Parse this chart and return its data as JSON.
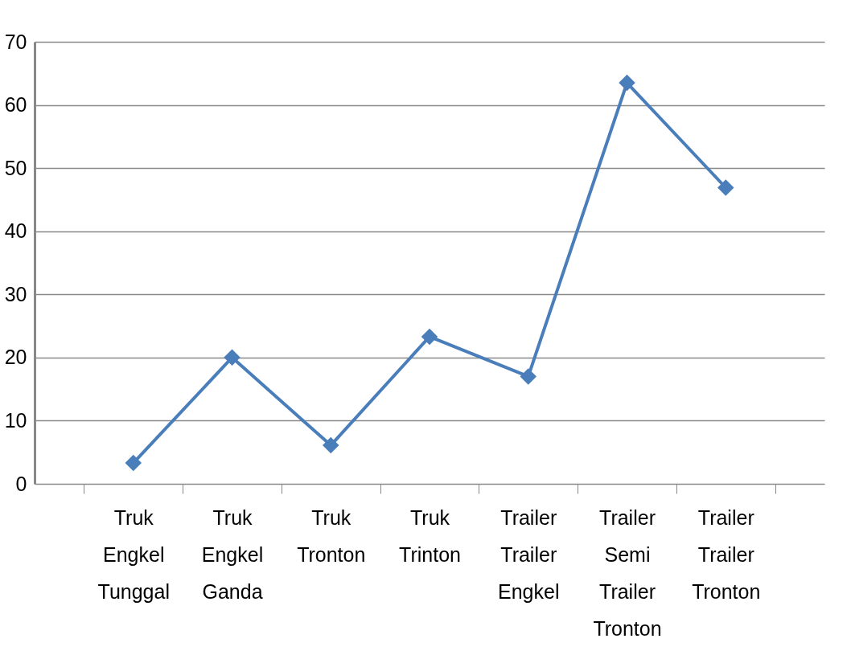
{
  "chart_data": {
    "type": "line",
    "categories": [
      "Truk Engkel Tunggal",
      "Truk Engkel Ganda",
      "Truk Tronton",
      "Truk Trinton",
      "Trailer Trailer Engkel",
      "Trailer Semi Trailer Tronton",
      "Trailer Trailer Tronton"
    ],
    "series": [
      {
        "color": "#4a7ebb",
        "values": [
          3.3,
          20,
          6.1,
          23.3,
          17,
          63.5,
          46.9
        ]
      }
    ],
    "ylim": [
      0,
      70
    ],
    "yticks": [
      0,
      10,
      20,
      30,
      40,
      50,
      60,
      70
    ],
    "grid": "y",
    "marker": "diamond",
    "line_style": "solid"
  }
}
